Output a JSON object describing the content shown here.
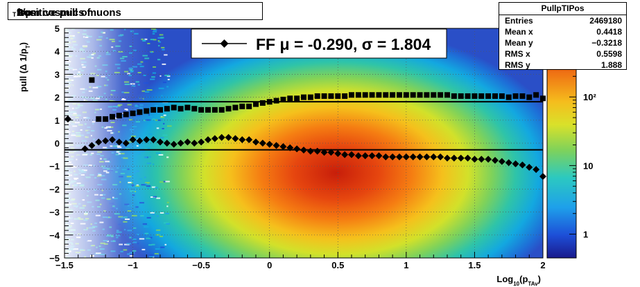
{
  "title": {
    "prefix": "Positive pull of ",
    "delta": "Δ",
    "mid": " 1/p",
    "sub": "T",
    "suffix": " from cosmics muons"
  },
  "stats": {
    "name": "PullpTIPos",
    "rows": [
      {
        "key": "Entries",
        "value": "2469180"
      },
      {
        "key": "Mean x",
        "value": "0.4418"
      },
      {
        "key": "Mean y",
        "value": "−0.3218"
      },
      {
        "key": "RMS x",
        "value": "0.5598"
      },
      {
        "key": "RMS y",
        "value": "1.888"
      }
    ]
  },
  "legend": {
    "entry": "FF μ = -0.290, σ =   1.804"
  },
  "colors": {
    "mean_line": "#000000",
    "sigma_line": "#000000",
    "markers": "#000000"
  },
  "chart_data": {
    "type": "heatmap",
    "xlabel": {
      "main": "Log",
      "sub": "10",
      "mid": "(p",
      "sub2": "TAv",
      "end": ")"
    },
    "ylabel": {
      "main": "pull (Δ 1/p",
      "sub": "T",
      "end": ")"
    },
    "xlim": [
      -1.5,
      2
    ],
    "ylim": [
      -5,
      5
    ],
    "x_ticks": [
      -1.5,
      -1,
      -0.5,
      0,
      0.5,
      1,
      1.5,
      2
    ],
    "x_tick_labels": [
      "−1.5",
      "−1",
      "−0.5",
      "0",
      "0.5",
      "1",
      "1.5",
      "2"
    ],
    "y_ticks": [
      -5,
      -4,
      -3,
      -2,
      -1,
      0,
      1,
      2,
      3,
      4,
      5
    ],
    "y_tick_labels": [
      "−5",
      "−4",
      "−3",
      "−2",
      "−1",
      "0",
      "1",
      "2",
      "3",
      "4",
      "5"
    ],
    "grid": true,
    "z_scale": "log",
    "z_ticks": [
      1,
      10,
      100
    ],
    "z_tick_labels": [
      "1",
      "10",
      "10²"
    ],
    "density_center": {
      "x": 0.5,
      "y": -1.3
    },
    "horizontal_lines": [
      {
        "name": "mean",
        "y": -0.29
      },
      {
        "name": "sigma",
        "y": 1.804
      }
    ],
    "series": [
      {
        "name": "mean",
        "marker": "diamond",
        "x": [
          -1.475,
          -1.35,
          -1.3,
          -1.25,
          -1.2,
          -1.15,
          -1.1,
          -1.05,
          -1.0,
          -0.95,
          -0.9,
          -0.85,
          -0.8,
          -0.75,
          -0.7,
          -0.65,
          -0.6,
          -0.55,
          -0.5,
          -0.45,
          -0.4,
          -0.35,
          -0.3,
          -0.25,
          -0.2,
          -0.15,
          -0.1,
          -0.05,
          0.0,
          0.05,
          0.1,
          0.15,
          0.2,
          0.25,
          0.3,
          0.35,
          0.4,
          0.45,
          0.5,
          0.55,
          0.6,
          0.65,
          0.7,
          0.75,
          0.8,
          0.85,
          0.9,
          0.95,
          1.0,
          1.05,
          1.1,
          1.15,
          1.2,
          1.25,
          1.3,
          1.35,
          1.4,
          1.45,
          1.5,
          1.55,
          1.6,
          1.65,
          1.7,
          1.75,
          1.8,
          1.85,
          1.9,
          1.95,
          2.0
        ],
        "y": [
          1.05,
          -0.25,
          -0.1,
          0.05,
          0.1,
          0.15,
          0.05,
          0.0,
          0.15,
          0.1,
          0.15,
          0.15,
          0.05,
          0.0,
          -0.05,
          0.0,
          0.05,
          0.0,
          0.05,
          0.15,
          0.2,
          0.25,
          0.25,
          0.2,
          0.15,
          0.15,
          0.05,
          0.0,
          -0.05,
          -0.1,
          -0.15,
          -0.2,
          -0.25,
          -0.3,
          -0.35,
          -0.35,
          -0.4,
          -0.4,
          -0.45,
          -0.5,
          -0.5,
          -0.55,
          -0.55,
          -0.55,
          -0.55,
          -0.6,
          -0.6,
          -0.6,
          -0.6,
          -0.6,
          -0.6,
          -0.6,
          -0.6,
          -0.6,
          -0.65,
          -0.65,
          -0.65,
          -0.65,
          -0.7,
          -0.7,
          -0.7,
          -0.75,
          -0.8,
          -0.85,
          -0.9,
          -0.95,
          -1.05,
          -1.15,
          -1.45
        ]
      },
      {
        "name": "sigma",
        "marker": "square",
        "x": [
          -1.3,
          -1.25,
          -1.2,
          -1.15,
          -1.1,
          -1.05,
          -1.0,
          -0.95,
          -0.9,
          -0.85,
          -0.8,
          -0.75,
          -0.7,
          -0.65,
          -0.6,
          -0.55,
          -0.5,
          -0.45,
          -0.4,
          -0.35,
          -0.3,
          -0.25,
          -0.2,
          -0.15,
          -0.1,
          -0.05,
          0.0,
          0.05,
          0.1,
          0.15,
          0.2,
          0.25,
          0.3,
          0.35,
          0.4,
          0.45,
          0.5,
          0.55,
          0.6,
          0.65,
          0.7,
          0.75,
          0.8,
          0.85,
          0.9,
          0.95,
          1.0,
          1.05,
          1.1,
          1.15,
          1.2,
          1.25,
          1.3,
          1.35,
          1.4,
          1.45,
          1.5,
          1.55,
          1.6,
          1.65,
          1.7,
          1.75,
          1.8,
          1.85,
          1.9,
          1.95,
          2.0
        ],
        "y": [
          2.75,
          1.05,
          1.05,
          1.15,
          1.2,
          1.25,
          1.3,
          1.35,
          1.4,
          1.45,
          1.45,
          1.5,
          1.55,
          1.5,
          1.55,
          1.5,
          1.45,
          1.45,
          1.45,
          1.45,
          1.5,
          1.55,
          1.6,
          1.6,
          1.7,
          1.75,
          1.8,
          1.85,
          1.9,
          1.95,
          1.95,
          2.0,
          2.0,
          2.05,
          2.05,
          2.05,
          2.05,
          2.05,
          2.1,
          2.1,
          2.1,
          2.1,
          2.1,
          2.1,
          2.1,
          2.1,
          2.1,
          2.1,
          2.1,
          2.1,
          2.1,
          2.1,
          2.1,
          2.05,
          2.05,
          2.05,
          2.05,
          2.05,
          2.05,
          2.05,
          2.05,
          2.0,
          2.05,
          2.05,
          2.0,
          2.1,
          1.95
        ]
      }
    ]
  }
}
